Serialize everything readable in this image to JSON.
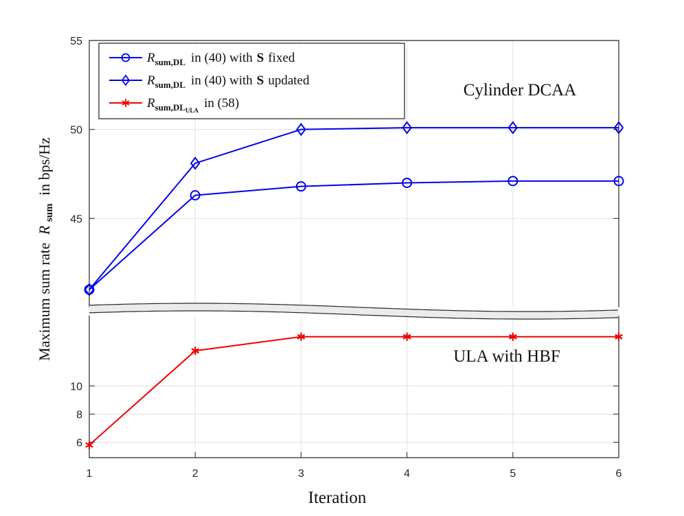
{
  "chart_data": {
    "type": "line",
    "xlabel": "Iteration",
    "ylabel_parts": {
      "main": "Maximum sum rate",
      "sym": "R",
      "sub": "sum",
      "unit": "in bps/Hz"
    },
    "x": [
      1,
      2,
      3,
      4,
      5,
      6
    ],
    "xlim": [
      1,
      6
    ],
    "x_ticks": [
      "1",
      "2",
      "3",
      "4",
      "5",
      "6"
    ],
    "grid": true,
    "upper_panel": {
      "annotation": "Cylinder DCAA",
      "ylim": [
        40,
        55
      ],
      "y_ticks": [
        45,
        50,
        55
      ],
      "y_tick_labels": [
        "45",
        "50",
        "55"
      ],
      "series": [
        {
          "name": "R_sum,DL in (40) with S fixed",
          "marker": "circle",
          "color": "#0000ee",
          "values": [
            41.0,
            46.3,
            46.8,
            47.0,
            47.1,
            47.1
          ]
        },
        {
          "name": "R_sum,DL in (40) with S updated",
          "marker": "diamond",
          "color": "#0000ee",
          "values": [
            41.0,
            48.1,
            50.0,
            50.1,
            50.1,
            50.1
          ]
        }
      ]
    },
    "lower_panel": {
      "annotation": "ULA with HBF",
      "ylim": [
        4.9,
        15.0
      ],
      "y_ticks": [
        6,
        8,
        10
      ],
      "y_tick_labels": [
        "6",
        "8",
        "10"
      ],
      "series": [
        {
          "name": "R_sum,DL_ULA in (58)",
          "marker": "asterisk",
          "color": "#ee0000",
          "values": [
            5.8,
            12.5,
            13.5,
            13.5,
            13.5,
            13.5
          ]
        }
      ]
    },
    "legend": {
      "position": "top-left",
      "entries": [
        {
          "sym": "R",
          "sub": "sum,DL",
          "subsub": "",
          "suffix1": "in (40) with",
          "bold": "S",
          "suffix2": "fixed"
        },
        {
          "sym": "R",
          "sub": "sum,DL",
          "subsub": "",
          "suffix1": "in (40) with",
          "bold": "S",
          "suffix2": "updated"
        },
        {
          "sym": "R",
          "sub": "sum,DL",
          "subsub": "ULA",
          "suffix1": "in (58)",
          "bold": "",
          "suffix2": ""
        }
      ]
    }
  }
}
